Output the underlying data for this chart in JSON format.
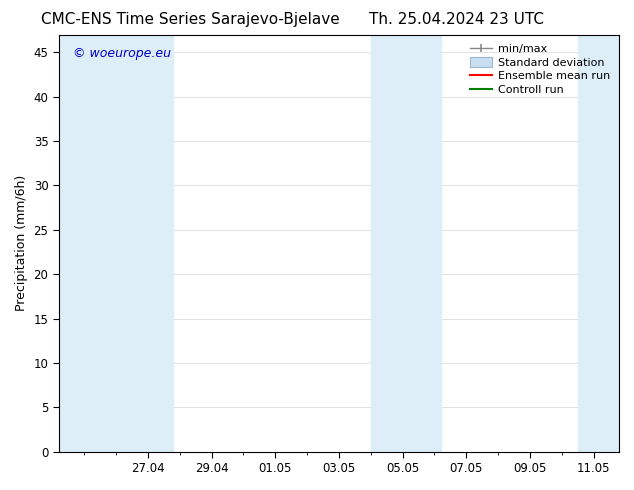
{
  "title_left": "CMC-ENS Time Series Sarajevo-Bjelave",
  "title_right": "Th. 25.04.2024 23 UTC",
  "ylabel": "Precipitation (mm/6h)",
  "watermark": "© woeurope.eu",
  "watermark_color": "#0000cc",
  "ylim": [
    0,
    47
  ],
  "yticks": [
    0,
    5,
    10,
    15,
    20,
    25,
    30,
    35,
    40,
    45
  ],
  "xlim": [
    25.9,
    12.1
  ],
  "xtick_labels": [
    "27.04",
    "29.04",
    "01.05",
    "03.05",
    "05.05",
    "07.05",
    "09.05",
    "11.05"
  ],
  "xtick_positions": [
    27.04,
    29.04,
    31.04,
    33.04,
    35.04,
    37.04,
    39.04,
    41.04
  ],
  "bg_color": "#ffffff",
  "plot_bg_color": "#ffffff",
  "shade_color": "#ddeef8",
  "shade_alpha": 1.0,
  "shade_regions": [
    [
      25.9,
      27.5
    ],
    [
      27.5,
      29.2
    ],
    [
      34.5,
      35.8
    ],
    [
      40.8,
      42.1
    ]
  ],
  "legend_labels": [
    "min/max",
    "Standard deviation",
    "Ensemble mean run",
    "Controll run"
  ],
  "grid_color": "#dddddd",
  "tick_color": "#000000",
  "font_family": "DejaVu Sans",
  "title_fontsize": 11,
  "label_fontsize": 9,
  "tick_fontsize": 8.5,
  "legend_fontsize": 8
}
